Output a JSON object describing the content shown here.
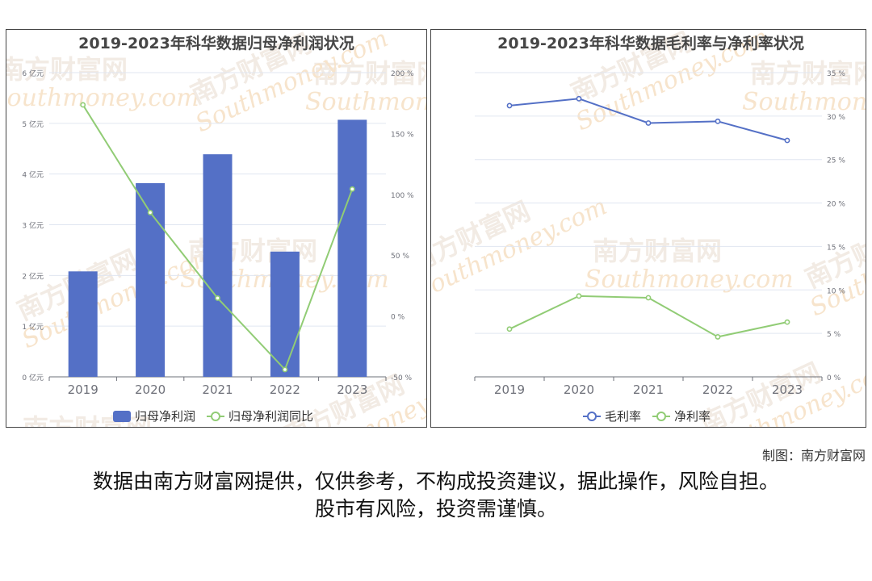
{
  "chart_data": [
    {
      "type": "bar",
      "title": "2019-2023年科华数据归母净利润状况",
      "categories": [
        "2019",
        "2020",
        "2021",
        "2022",
        "2023"
      ],
      "series": [
        {
          "name": "归母净利润",
          "type": "bar",
          "axis": "left",
          "values": [
            2.08,
            3.82,
            4.39,
            2.47,
            5.07
          ]
        },
        {
          "name": "归母净利润同比",
          "type": "line",
          "axis": "right",
          "values": [
            173.5,
            85.0,
            14.7,
            -44.0,
            104.3
          ]
        }
      ],
      "ylim": [
        0,
        6
      ],
      "y_ticks": [
        "0 亿元",
        "1 亿元",
        "2 亿元",
        "3 亿元",
        "4 亿元",
        "5 亿元",
        "6 亿元"
      ],
      "y2lim": [
        -50,
        200
      ],
      "y2_ticks": [
        "-50 %",
        "0 %",
        "50 %",
        "100 %",
        "150 %",
        "200 %"
      ],
      "legend_position": "bottom",
      "grid": true,
      "colors": {
        "bar": "#5470c6",
        "line": "#91cc75"
      }
    },
    {
      "type": "line",
      "title": "2019-2023年科华数据毛利率与净利率状况",
      "categories": [
        "2019",
        "2020",
        "2021",
        "2022",
        "2023"
      ],
      "series": [
        {
          "name": "毛利率",
          "values": [
            31.2,
            32.0,
            29.2,
            29.4,
            27.2
          ]
        },
        {
          "name": "净利率",
          "values": [
            5.5,
            9.3,
            9.1,
            4.6,
            6.3
          ]
        }
      ],
      "ylim": [
        0,
        35
      ],
      "y_ticks": [
        "0 %",
        "5 %",
        "10 %",
        "15 %",
        "20 %",
        "25 %",
        "30 %",
        "35 %"
      ],
      "legend_position": "bottom",
      "grid": true,
      "colors": {
        "series1": "#5470c6",
        "series2": "#91cc75"
      }
    }
  ],
  "footer": {
    "credit": "制图：南方财富网",
    "disclaimer_line1": "数据由南方财富网提供，仅供参考，不构成投资建议，据此操作，风险自担。",
    "disclaimer_line2": "股市有风险，投资需谨慎。"
  },
  "watermark": {
    "cn": "南方财富网",
    "en": "Southmoney.com"
  }
}
